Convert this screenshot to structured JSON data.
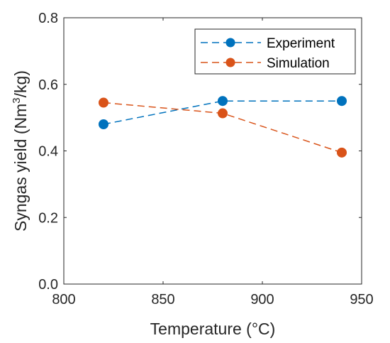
{
  "chart_data": {
    "type": "line",
    "xlabel": "Temperature (°C)",
    "ylabel_prefix": "Syngas yield (Nm",
    "ylabel_sup": "3",
    "ylabel_suffix": "/kg)",
    "xlim": [
      800,
      950
    ],
    "ylim": [
      0,
      0.8
    ],
    "xticks": [
      800,
      850,
      900,
      950
    ],
    "xtick_labels": [
      "800",
      "850",
      "900",
      "950"
    ],
    "yticks": [
      0,
      0.2,
      0.4,
      0.6,
      0.8
    ],
    "ytick_labels": [
      "0.0",
      "0.2",
      "0.4",
      "0.6",
      "0.8"
    ],
    "grid": false,
    "legend_position": "top-right",
    "series": [
      {
        "name": "Experiment",
        "color": "#0072BD",
        "line_style": "dashed",
        "marker": "circle",
        "x": [
          820,
          880,
          940
        ],
        "y": [
          0.48,
          0.55,
          0.55
        ]
      },
      {
        "name": "Simulation",
        "color": "#D95319",
        "line_style": "dashed",
        "marker": "circle",
        "x": [
          820,
          880,
          940
        ],
        "y": [
          0.545,
          0.513,
          0.395
        ]
      }
    ]
  }
}
